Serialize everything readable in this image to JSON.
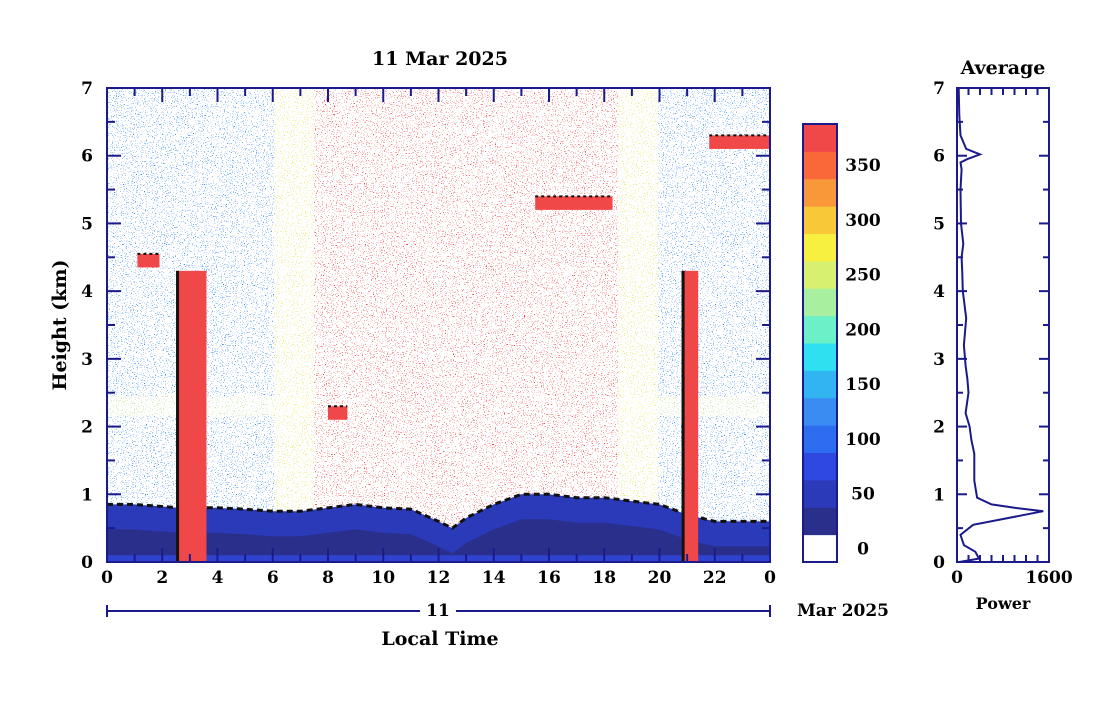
{
  "chart_data": [
    {
      "type": "heatmap",
      "title": "11 Mar 2025",
      "xlabel": "Local Time",
      "ylabel": "Height (km)",
      "xlim": [
        0,
        24
      ],
      "ylim": [
        0,
        7
      ],
      "x_ticks": [
        "0",
        "2",
        "4",
        "6",
        "8",
        "10",
        "12",
        "14",
        "16",
        "18",
        "20",
        "22",
        "0"
      ],
      "y_ticks": [
        "0",
        "1",
        "2",
        "3",
        "4",
        "5",
        "6",
        "7"
      ],
      "date_axis": {
        "day": "11",
        "month_year": "Mar 2025"
      },
      "colorbar": {
        "ticks": [
          0,
          50,
          100,
          150,
          200,
          250,
          300,
          350
        ],
        "levels": [
          0,
          25,
          50,
          75,
          100,
          125,
          150,
          175,
          200,
          225,
          250,
          275,
          300,
          325,
          350,
          375
        ],
        "colors": [
          "#ffffff",
          "#2b2f8c",
          "#2b3ab8",
          "#2f48e0",
          "#2e6cf0",
          "#3a8cf2",
          "#32b4f2",
          "#2ee0f0",
          "#6cf0c8",
          "#a8f0a0",
          "#d8f070",
          "#f8f040",
          "#f8c838",
          "#f89838",
          "#f86838",
          "#f04848"
        ]
      },
      "series": [
        {
          "name": "backscatter",
          "boundary_layer_height_km": [
            [
              0,
              0.85
            ],
            [
              1,
              0.85
            ],
            [
              2,
              0.82
            ],
            [
              2.6,
              0.8
            ],
            [
              3,
              0.8
            ],
            [
              4,
              0.8
            ],
            [
              5,
              0.78
            ],
            [
              6,
              0.75
            ],
            [
              7,
              0.75
            ],
            [
              8,
              0.8
            ],
            [
              9,
              0.85
            ],
            [
              10,
              0.8
            ],
            [
              11,
              0.78
            ],
            [
              12,
              0.6
            ],
            [
              12.5,
              0.5
            ],
            [
              13,
              0.65
            ],
            [
              14,
              0.85
            ],
            [
              15,
              1.0
            ],
            [
              16,
              1.0
            ],
            [
              17,
              0.95
            ],
            [
              18,
              0.95
            ],
            [
              19,
              0.9
            ],
            [
              20,
              0.85
            ],
            [
              21,
              0.7
            ],
            [
              22,
              0.6
            ],
            [
              23,
              0.6
            ],
            [
              24,
              0.6
            ]
          ],
          "residual_layer_height_km": 2.3,
          "high_signal_band_hours": [
            7.5,
            18.5
          ],
          "vertical_streaks_hours": [
            [
              2.5,
              3.6
            ],
            [
              20.8,
              21.4
            ]
          ],
          "elevated_layers": [
            {
              "x_hours": [
                1.1,
                1.9
              ],
              "y_km": 4.45
            },
            {
              "x_hours": [
                8.0,
                8.7
              ],
              "y_km": 2.2
            },
            {
              "x_hours": [
                15.5,
                18.3
              ],
              "y_km": 5.3
            },
            {
              "x_hours": [
                21.8,
                24
              ],
              "y_km": 6.2
            }
          ]
        }
      ]
    },
    {
      "type": "line",
      "title": "Average",
      "xlabel": "Power",
      "ylabel": "",
      "xlim": [
        0,
        1600
      ],
      "ylim": [
        0,
        7
      ],
      "x_ticks": [
        "0",
        "1600"
      ],
      "y_ticks": [
        "0",
        "1",
        "2",
        "3",
        "4",
        "5",
        "6",
        "7"
      ],
      "series": [
        {
          "name": "average-profile",
          "x": [
            40,
            380,
            320,
            120,
            60,
            280,
            1500,
            1000,
            600,
            350,
            300,
            300,
            250,
            220,
            150,
            200,
            180,
            150,
            120,
            160,
            100,
            90,
            80,
            110,
            70,
            60,
            80,
            60,
            180,
            400,
            160,
            60,
            40,
            30
          ],
          "y": [
            0,
            0.05,
            0.15,
            0.25,
            0.4,
            0.55,
            0.75,
            0.8,
            0.85,
            0.95,
            1.2,
            1.6,
            1.8,
            2.0,
            2.2,
            2.5,
            2.7,
            2.9,
            3.2,
            3.6,
            4.0,
            4.3,
            4.5,
            4.7,
            5.0,
            5.5,
            5.8,
            5.9,
            5.95,
            6.02,
            6.1,
            6.3,
            6.6,
            7.0
          ]
        }
      ]
    }
  ]
}
